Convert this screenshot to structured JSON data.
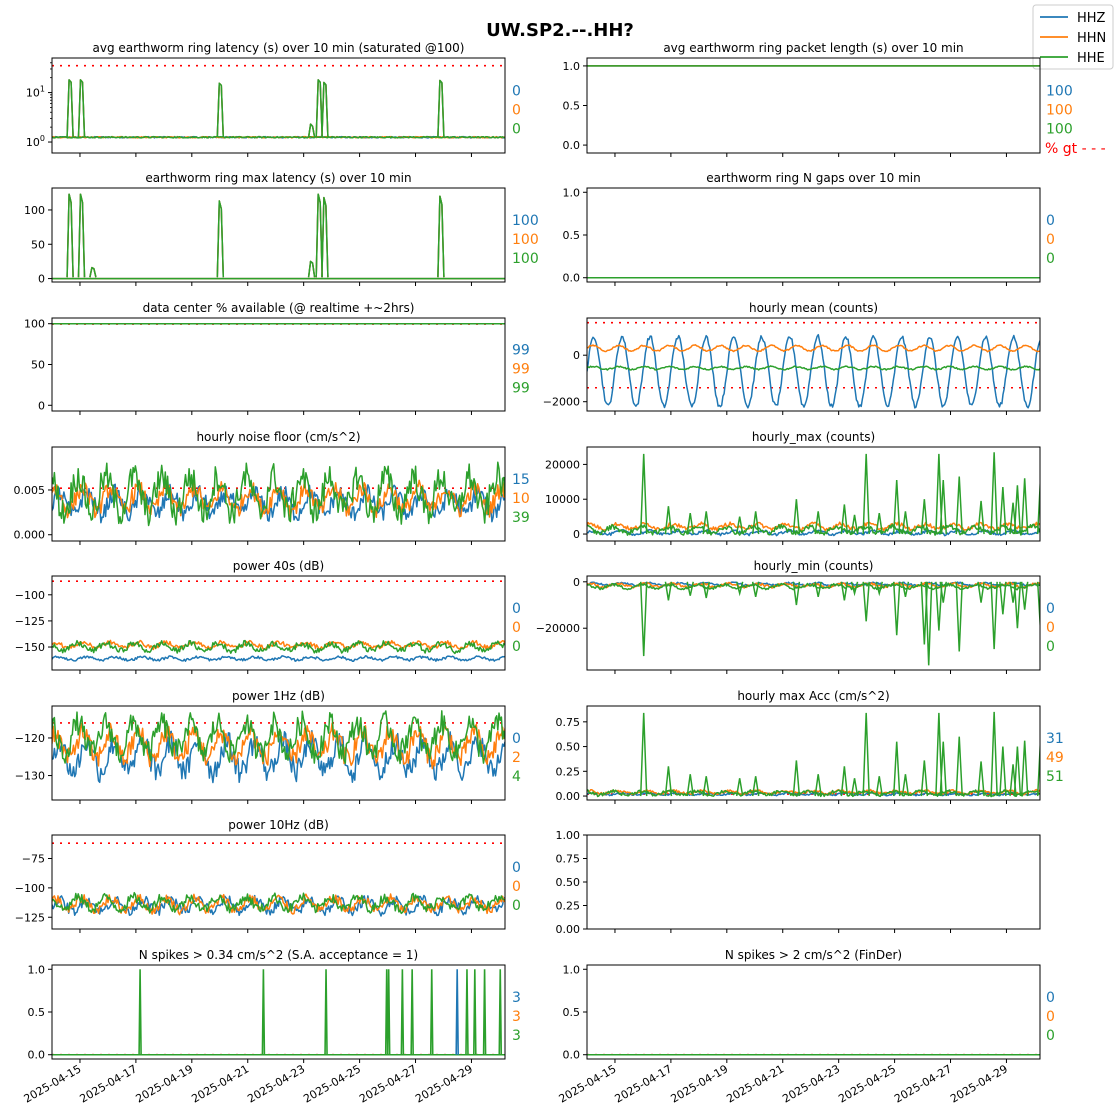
{
  "figure": {
    "title": "UW.SP2.--.HH?",
    "legend": [
      {
        "name": "HHZ",
        "color": "#1f77b4"
      },
      {
        "name": "HHN",
        "color": "#ff7f0e"
      },
      {
        "name": "HHE",
        "color": "#2ca02c"
      }
    ],
    "legend_placement": "top-right",
    "x_axis": {
      "type": "date",
      "range": [
        "2025-04-14",
        "2025-04-30"
      ],
      "tick_labels": [
        "2025-04-15",
        "2025-04-17",
        "2025-04-19",
        "2025-04-21",
        "2025-04-23",
        "2025-04-25",
        "2025-04-27",
        "2025-04-29"
      ],
      "shared": true
    },
    "colors": {
      "HHZ": "#1f77b4",
      "HHN": "#ff7f0e",
      "HHE": "#2ca02c",
      "threshold": "#ff0000"
    },
    "gt_label": "% gt - - -"
  },
  "chart_data": [
    {
      "type": "line",
      "title": "avg earthworm ring latency (s)   over 10 min (saturated @100)",
      "yscale": "log",
      "ylim": [
        0.6,
        50
      ],
      "ytick_labels": [
        "10^0",
        "10^1"
      ],
      "threshold": [
        35
      ],
      "percent_gt": [
        "0",
        "0",
        "0"
      ],
      "baseline": 1.25,
      "spikes": [
        [
          0.9,
          18
        ],
        [
          1.5,
          18
        ],
        [
          8.8,
          15.5
        ],
        [
          13.6,
          2.3
        ],
        [
          14.0,
          18
        ],
        [
          14.3,
          16
        ],
        [
          20.4,
          17.5
        ]
      ],
      "series": [
        "HHZ",
        "HHN",
        "HHE"
      ]
    },
    {
      "type": "line",
      "title": "avg earthworm ring packet length (s)   over 10 min",
      "yscale": "linear",
      "ylim": [
        -0.1,
        1.1
      ],
      "ytick_labels": [
        "0.0",
        "0.5",
        "1.0"
      ],
      "constant": 1.0,
      "percent_gt": [
        "100",
        "100",
        "100"
      ],
      "series": [
        "HHZ",
        "HHN",
        "HHE"
      ]
    },
    {
      "type": "line",
      "title": "earthworm ring max latency (s)   over 10 min",
      "yscale": "linear",
      "ylim": [
        -5,
        132
      ],
      "ytick_labels": [
        "0",
        "50",
        "100"
      ],
      "spikes": [
        [
          0.9,
          123
        ],
        [
          1.5,
          123
        ],
        [
          2.1,
          16
        ],
        [
          8.8,
          113
        ],
        [
          13.6,
          25
        ],
        [
          14.0,
          123
        ],
        [
          14.3,
          118
        ],
        [
          20.4,
          120
        ]
      ],
      "percent_gt": [
        "100",
        "100",
        "100"
      ],
      "series": [
        "HHZ",
        "HHN",
        "HHE"
      ]
    },
    {
      "type": "line",
      "title": "earthworm ring N gaps   over 10 min",
      "yscale": "linear",
      "ylim": [
        -0.05,
        1.05
      ],
      "ytick_labels": [
        "0.0",
        "0.5",
        "1.0"
      ],
      "constant": 0,
      "percent_gt": [
        "0",
        "0",
        "0"
      ],
      "series": [
        "HHZ",
        "HHN",
        "HHE"
      ]
    },
    {
      "type": "line",
      "title": "data center % available (@ realtime +~2hrs)",
      "yscale": "linear",
      "ylim": [
        -7,
        107
      ],
      "ytick_labels": [
        "0",
        "50",
        "100"
      ],
      "constant": 100,
      "threshold": [
        99.5
      ],
      "percent_gt": [
        "99",
        "99",
        "99"
      ],
      "series": [
        "HHZ",
        "HHN",
        "HHE"
      ]
    },
    {
      "type": "line",
      "title": "hourly mean (counts)",
      "yscale": "linear",
      "ylim": [
        -2400,
        1600
      ],
      "ytick_labels": [
        "−2000",
        "0"
      ],
      "threshold": [
        1400,
        -1400
      ],
      "series_levels": {
        "HHZ": [
          -700,
          1500
        ],
        "HHN": [
          300,
          120
        ],
        "HHE": [
          -550,
          60
        ]
      },
      "percent_gt": [
        "",
        "",
        ""
      ],
      "series": [
        "HHZ",
        "HHN",
        "HHE"
      ]
    },
    {
      "type": "line",
      "title": "hourly noise floor (cm/s^2)",
      "yscale": "linear",
      "ylim": [
        -0.0007,
        0.0098
      ],
      "ytick_labels": [
        "0.000",
        "0.005"
      ],
      "threshold": [
        0.0052
      ],
      "series_levels": {
        "HHZ": [
          0.0035,
          0.0012
        ],
        "HHN": [
          0.004,
          0.0012
        ],
        "HHE": [
          0.0045,
          0.002
        ]
      },
      "percent_gt": [
        "15",
        "10",
        "39"
      ],
      "series": [
        "HHZ",
        "HHN",
        "HHE"
      ]
    },
    {
      "type": "line",
      "title": "hourly_max (counts)",
      "yscale": "linear",
      "ylim": [
        -2000,
        25000
      ],
      "ytick_labels": [
        "0",
        "10000",
        "20000"
      ],
      "series_levels": {
        "HHZ": [
          400,
          500
        ],
        "HHN": [
          2200,
          700
        ],
        "HHE": [
          1200,
          900
        ]
      },
      "peaks": [
        [
          3.9,
          23000
        ],
        [
          5.6,
          8000
        ],
        [
          7.1,
          6000
        ],
        [
          8.2,
          6500
        ],
        [
          10.5,
          5000
        ],
        [
          11.6,
          6500
        ],
        [
          14.4,
          10000
        ],
        [
          15.9,
          6500
        ],
        [
          17.7,
          8500
        ],
        [
          18.4,
          5500
        ],
        [
          19.2,
          23000
        ],
        [
          20.1,
          6000
        ],
        [
          21.3,
          15500
        ],
        [
          21.9,
          6500
        ],
        [
          23.2,
          10000
        ],
        [
          24.2,
          23000
        ],
        [
          24.5,
          15500
        ],
        [
          25.6,
          16500
        ],
        [
          27.1,
          9500
        ],
        [
          28.0,
          23500
        ],
        [
          28.6,
          13500
        ],
        [
          29.3,
          9000
        ],
        [
          29.6,
          14000
        ],
        [
          30.1,
          16000
        ],
        [
          31.2,
          17000
        ]
      ],
      "percent_gt": [
        "",
        "",
        ""
      ],
      "series": [
        "HHZ",
        "HHN",
        "HHE"
      ]
    },
    {
      "type": "line",
      "title": "power 40s (dB)",
      "yscale": "linear",
      "ylim": [
        -172,
        -82
      ],
      "ytick_labels": [
        "−150",
        "−125",
        "−100"
      ],
      "threshold": [
        -87
      ],
      "series_levels": {
        "HHZ": [
          -161,
          1.5
        ],
        "HHN": [
          -148,
          2.5
        ],
        "HHE": [
          -150,
          3.5
        ]
      },
      "percent_gt": [
        "0",
        "0",
        "0"
      ],
      "series": [
        "HHZ",
        "HHN",
        "HHE"
      ]
    },
    {
      "type": "line",
      "title": "hourly_min (counts)",
      "yscale": "linear",
      "ylim": [
        -38000,
        2500
      ],
      "ytick_labels": [
        "−20000",
        "0"
      ],
      "series_levels": {
        "HHZ": [
          -1000,
          500
        ],
        "HHN": [
          -1500,
          700
        ],
        "HHE": [
          -2000,
          800
        ]
      },
      "peaks": [
        [
          3.9,
          -32000
        ],
        [
          5.6,
          -8000
        ],
        [
          7.1,
          -6000
        ],
        [
          8.2,
          -7000
        ],
        [
          10.5,
          -5000
        ],
        [
          11.6,
          -6500
        ],
        [
          14.4,
          -10000
        ],
        [
          15.9,
          -6500
        ],
        [
          17.7,
          -8000
        ],
        [
          18.4,
          -5000
        ],
        [
          19.2,
          -17000
        ],
        [
          20.1,
          -5000
        ],
        [
          21.3,
          -23000
        ],
        [
          21.9,
          -6500
        ],
        [
          23.2,
          -27000
        ],
        [
          23.5,
          -36000
        ],
        [
          24.2,
          -21000
        ],
        [
          24.5,
          -9000
        ],
        [
          25.6,
          -30000
        ],
        [
          27.1,
          -9000
        ],
        [
          28.0,
          -29000
        ],
        [
          28.6,
          -14000
        ],
        [
          29.3,
          -9000
        ],
        [
          29.6,
          -20000
        ],
        [
          30.1,
          -12000
        ],
        [
          31.2,
          -22000
        ]
      ],
      "percent_gt": [
        "0",
        "0",
        "0"
      ],
      "series": [
        "HHZ",
        "HHN",
        "HHE"
      ]
    },
    {
      "type": "line",
      "title": "power 1Hz (dB)",
      "yscale": "linear",
      "ylim": [
        -136.5,
        -111.5
      ],
      "ytick_labels": [
        "−130",
        "−120"
      ],
      "threshold": [
        -116
      ],
      "series_levels": {
        "HHZ": [
          -125,
          4
        ],
        "HHN": [
          -122,
          3.5
        ],
        "HHE": [
          -120,
          4
        ]
      },
      "percent_gt": [
        "0",
        "2",
        "4"
      ],
      "series": [
        "HHZ",
        "HHN",
        "HHE"
      ]
    },
    {
      "type": "line",
      "title": "hourly max Acc (cm/s^2)",
      "yscale": "linear",
      "ylim": [
        -0.04,
        0.91
      ],
      "ytick_labels": [
        "0.00",
        "0.25",
        "0.50",
        "0.75"
      ],
      "threshold": [
        0.02
      ],
      "series_levels": {
        "HHZ": [
          0.02,
          0.01
        ],
        "HHN": [
          0.04,
          0.015
        ],
        "HHE": [
          0.03,
          0.02
        ]
      },
      "peaks": [
        [
          3.9,
          0.84
        ],
        [
          5.6,
          0.3
        ],
        [
          7.1,
          0.22
        ],
        [
          8.2,
          0.2
        ],
        [
          10.5,
          0.18
        ],
        [
          11.6,
          0.2
        ],
        [
          14.4,
          0.36
        ],
        [
          15.9,
          0.22
        ],
        [
          17.7,
          0.3
        ],
        [
          18.4,
          0.18
        ],
        [
          19.2,
          0.84
        ],
        [
          20.1,
          0.2
        ],
        [
          21.3,
          0.55
        ],
        [
          21.9,
          0.22
        ],
        [
          23.2,
          0.36
        ],
        [
          24.2,
          0.84
        ],
        [
          24.5,
          0.55
        ],
        [
          25.6,
          0.6
        ],
        [
          27.1,
          0.35
        ],
        [
          28.0,
          0.85
        ],
        [
          28.6,
          0.5
        ],
        [
          29.3,
          0.32
        ],
        [
          29.6,
          0.5
        ],
        [
          30.1,
          0.56
        ],
        [
          31.2,
          0.6
        ]
      ],
      "percent_gt": [
        "31",
        "49",
        "51"
      ],
      "series": [
        "HHZ",
        "HHN",
        "HHE"
      ]
    },
    {
      "type": "line",
      "title": "power 10Hz (dB)",
      "yscale": "linear",
      "ylim": [
        -135,
        -55
      ],
      "ytick_labels": [
        "−125",
        "−100",
        "−75"
      ],
      "threshold": [
        -62
      ],
      "series_levels": {
        "HHZ": [
          -115,
          5
        ],
        "HHN": [
          -114,
          5
        ],
        "HHE": [
          -113,
          5
        ]
      },
      "percent_gt": [
        "0",
        "0",
        "0"
      ],
      "series": [
        "HHZ",
        "HHN",
        "HHE"
      ]
    },
    {
      "type": "empty",
      "title": "",
      "ylim": [
        0,
        1
      ],
      "ytick_labels": [
        "0.00",
        "0.25",
        "0.50",
        "0.75",
        "1.00"
      ],
      "percent_gt": [
        "",
        "",
        ""
      ]
    },
    {
      "type": "line",
      "title": "N spikes > 0.34 cm/s^2 (S.A. acceptance = 1)",
      "yscale": "linear",
      "ylim": [
        -0.05,
        1.05
      ],
      "ytick_labels": [
        "0.0",
        "0.5",
        "1.0"
      ],
      "threshold": [
        0
      ],
      "event_days": {
        "HHE": [
          4.5,
          10.8,
          14.0,
          17.1,
          17.2,
          17.9,
          18.4,
          19.4,
          21.2,
          21.6,
          22.1,
          22.9,
          23.3
        ]
      },
      "event_days_extra": {
        "HHZ": [
          20.7
        ]
      },
      "percent_gt": [
        "3",
        "3",
        "3"
      ],
      "series": [
        "HHZ",
        "HHN",
        "HHE"
      ]
    },
    {
      "type": "line",
      "title": "N spikes > 2 cm/s^2 (FinDer)",
      "yscale": "linear",
      "ylim": [
        -0.05,
        1.05
      ],
      "ytick_labels": [
        "0.0",
        "0.5",
        "1.0"
      ],
      "constant": 0,
      "threshold": [
        0
      ],
      "percent_gt": [
        "0",
        "0",
        "0"
      ],
      "series": [
        "HHZ",
        "HHN",
        "HHE"
      ]
    }
  ]
}
